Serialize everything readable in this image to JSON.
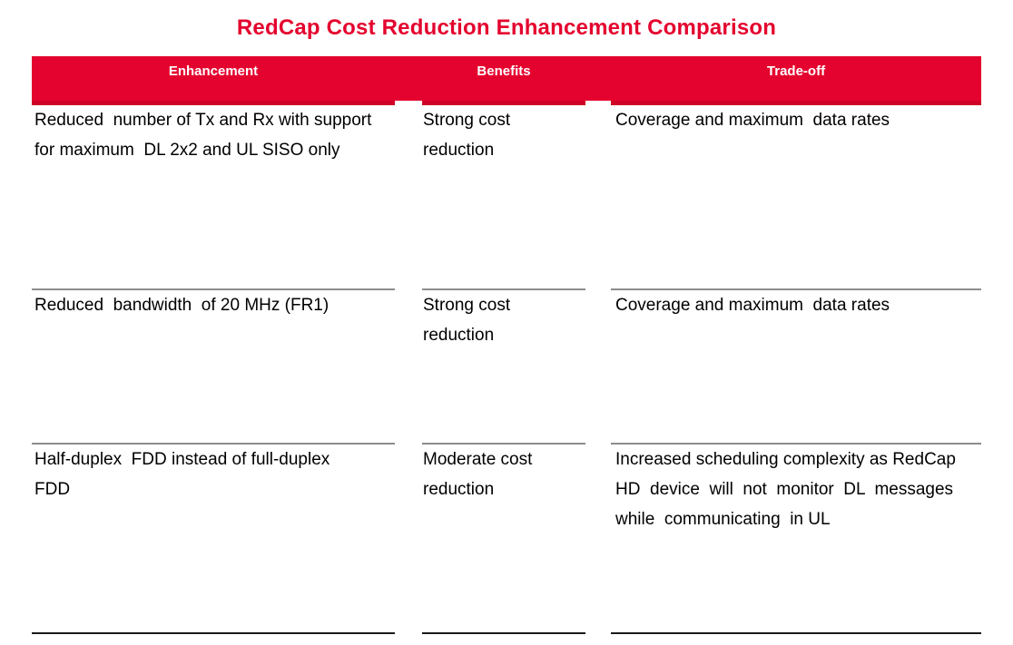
{
  "title": "RedCap Cost Reduction Enhancement Comparison",
  "colors": {
    "accent_red": "#e4032e",
    "strip_red": "#cf0127",
    "separator_gray": "#8c8c8c",
    "bottom_black": "#1a1a1a",
    "header_text": "#ffffff",
    "body_text": "#000000",
    "page_bg": "#ffffff"
  },
  "table": {
    "headers": [
      "Enhancement",
      "Benefits",
      "Trade-off"
    ],
    "rows": [
      {
        "enhancement": "Reduced  number of Tx and Rx with support\nfor maximum  DL 2x2 and UL SISO only",
        "benefits": "Strong cost\nreduction",
        "tradeoff": "Coverage and maximum  data rates"
      },
      {
        "enhancement": "Reduced  bandwidth  of 20 MHz (FR1)",
        "benefits": "Strong cost\nreduction",
        "tradeoff": "Coverage and maximum  data rates"
      },
      {
        "enhancement": "Half-duplex  FDD instead of full-duplex\nFDD",
        "benefits": "Moderate cost\nreduction",
        "tradeoff": "Increased scheduling complexity as RedCap\nHD  device  will  not  monitor  DL  messages\nwhile  communicating  in UL"
      }
    ]
  }
}
